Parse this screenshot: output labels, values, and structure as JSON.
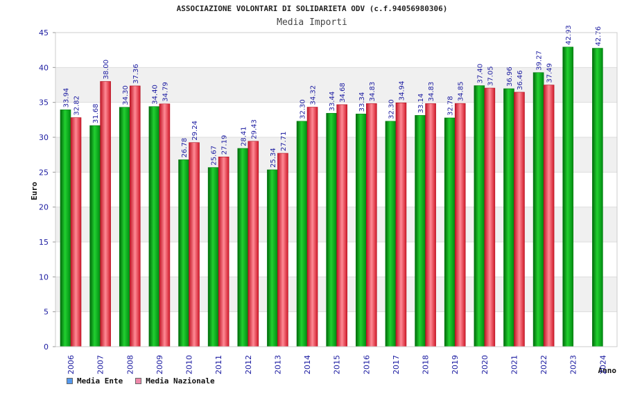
{
  "title": "ASSOCIAZIONE VOLONTARI DI SOLIDARIETA ODV (c.f.94056980306)",
  "subtitle": "Media Importi",
  "legend": {
    "series1": "Media Ente",
    "series2": "Media Nazionale",
    "swatch1_color": "#5599ee",
    "swatch2_color": "#ee88aa"
  },
  "colors": {
    "green": "#10b020",
    "green_dark": "#007a10",
    "red": "#f03040",
    "red_dark": "#b01020",
    "band": "#f0f0f0",
    "axis_text": "#1a1aa0",
    "value_text": "#1a1aa0"
  },
  "chart_data": {
    "type": "bar",
    "title": "ASSOCIAZIONE VOLONTARI DI SOLIDARIETA ODV (c.f.94056980306)",
    "subtitle": "Media Importi",
    "xlabel": "Anno",
    "ylabel": "Euro",
    "ylim": [
      0,
      45
    ],
    "yticks": [
      "0",
      "5",
      "10",
      "15",
      "20",
      "25",
      "30",
      "35",
      "40",
      "45"
    ],
    "categories": [
      "2006",
      "2007",
      "2008",
      "2009",
      "2010",
      "2011",
      "2012",
      "2013",
      "2014",
      "2015",
      "2016",
      "2017",
      "2018",
      "2019",
      "2020",
      "2021",
      "2022",
      "2023",
      "2024"
    ],
    "series": [
      {
        "name": "Media Ente",
        "values": [
          33.94,
          31.68,
          34.3,
          34.4,
          26.78,
          25.67,
          28.41,
          25.34,
          32.3,
          33.44,
          33.34,
          32.3,
          33.14,
          32.78,
          37.4,
          36.96,
          39.27,
          42.93,
          42.76
        ],
        "labels": [
          "33.94",
          "31.68",
          "34.30",
          "34.40",
          "26.78",
          "25.67",
          "28.41",
          "25.34",
          "32.30",
          "33.44",
          "33.34",
          "32.30",
          "33.14",
          "32.78",
          "37.40",
          "36.96",
          "39.27",
          "42.93",
          "42.76"
        ]
      },
      {
        "name": "Media Nazionale",
        "values": [
          32.82,
          38.0,
          37.36,
          34.79,
          29.24,
          27.19,
          29.43,
          27.71,
          34.32,
          34.68,
          34.83,
          34.94,
          34.83,
          34.85,
          37.05,
          36.46,
          37.49,
          null,
          null
        ],
        "labels": [
          "32.82",
          "38.00",
          "37.36",
          "34.79",
          "29.24",
          "27.19",
          "29.43",
          "27.71",
          "34.32",
          "34.68",
          "34.83",
          "34.94",
          "34.83",
          "34.85",
          "37.05",
          "36.46",
          "37.49",
          null,
          null
        ]
      }
    ]
  }
}
